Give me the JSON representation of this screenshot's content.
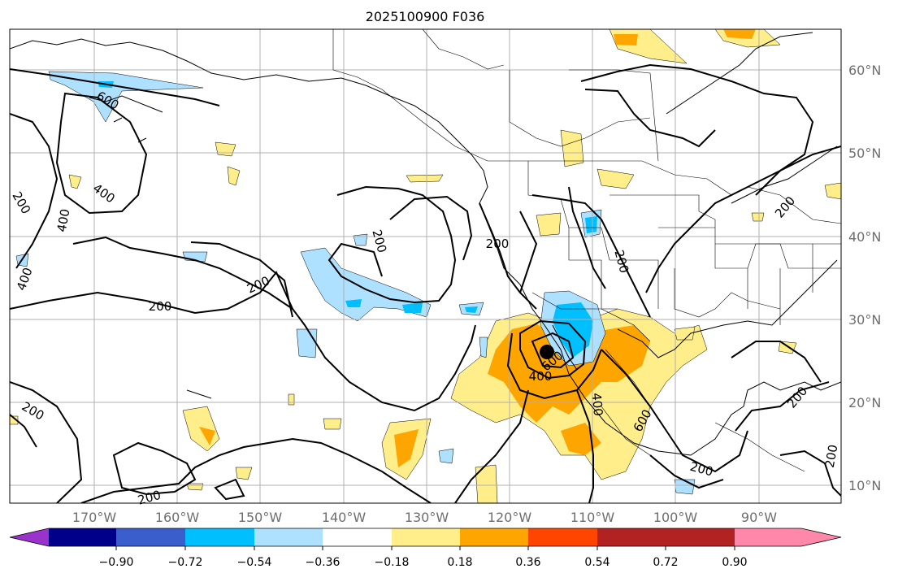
{
  "map": {
    "title": "2025100900 F036",
    "lon_ticks": [
      "170°W",
      "160°W",
      "150°W",
      "140°W",
      "130°W",
      "120°W",
      "110°W",
      "100°W",
      "90°W"
    ],
    "lat_ticks": [
      "60°N",
      "50°N",
      "40°N",
      "30°N",
      "20°N",
      "10°N"
    ],
    "contour_labels": [
      "600",
      "400",
      "200",
      "400",
      "200",
      "200",
      "200",
      "400",
      "200",
      "200",
      "400",
      "600",
      "400",
      "200",
      "600",
      "200",
      "200",
      "200",
      "200",
      "200"
    ],
    "colorbar": {
      "ticks": [
        "−0.90",
        "−0.72",
        "−0.54",
        "−0.36",
        "−0.18",
        "0.18",
        "0.36",
        "0.54",
        "0.72",
        "0.90"
      ],
      "colors": [
        "#9933cc",
        "#00008b",
        "#3a5fcd",
        "#00bfff",
        "#aee0ff",
        "#ffffff",
        "#ffee8a",
        "#ffa500",
        "#ff4500",
        "#b22222",
        "#ff88aa"
      ]
    }
  }
}
